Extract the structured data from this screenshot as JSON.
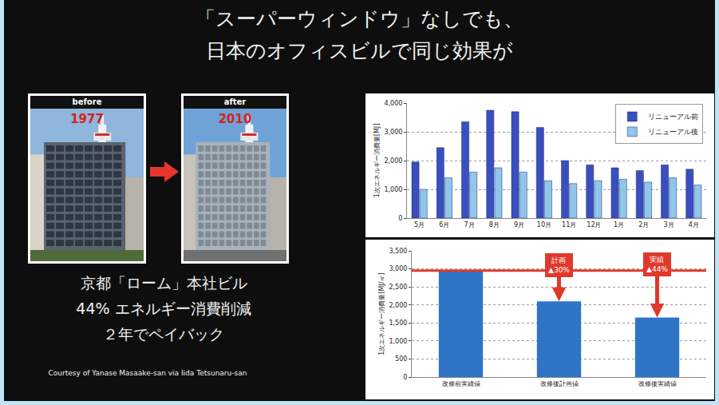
{
  "title": [
    "「スーパーウィンドウ」なしでも、",
    "日本のオフィスビルで同じ効果が"
  ],
  "photos": [
    {
      "header": "before",
      "year": "1977"
    },
    {
      "header": "after",
      "year": "2010"
    }
  ],
  "caption": [
    "京都「ローム」本社ビル",
    "44% エネルギー消費削減",
    "２年でペイバック"
  ],
  "credit": "Courtesy of Yanase Masaake-san via Iida Tetsunaru-san",
  "chart_data": [
    {
      "type": "bar",
      "y_label": "1次エネルギー消費量[MJ]",
      "categories": [
        "5月",
        "6月",
        "7月",
        "8月",
        "9月",
        "10月",
        "11月",
        "12月",
        "1月",
        "2月",
        "3月",
        "4月"
      ],
      "series": [
        {
          "name": "リニューアル前",
          "color": "#3a4fbf",
          "values": [
            1950,
            2450,
            3350,
            3750,
            3700,
            3150,
            2000,
            1850,
            1750,
            1650,
            1850,
            1700
          ]
        },
        {
          "name": "リニューアル後",
          "color": "#8fc6ea",
          "values": [
            1000,
            1400,
            1600,
            1750,
            1600,
            1300,
            1200,
            1300,
            1350,
            1250,
            1400,
            1150
          ]
        }
      ],
      "ylim": [
        0,
        4000
      ],
      "yticks": [
        0,
        {
          "value": 1000,
          "label": "1,000"
        },
        {
          "value": 2000,
          "label": "2,000"
        },
        {
          "value": 3000,
          "label": "3,000"
        },
        {
          "value": 4000,
          "label": "4,000"
        }
      ],
      "grid": true,
      "legend": "top right"
    },
    {
      "type": "bar",
      "y_label": "1次エネルギー消費量[MJ/㎡]",
      "categories": [
        "改修前実績値",
        "改修後計画値",
        "改修後実績値"
      ],
      "values": [
        2950,
        2100,
        1650
      ],
      "color": "#2e75c8",
      "ylim": [
        0,
        3500
      ],
      "yticks": [
        0,
        500,
        {
          "value": 1000,
          "label": "1,000"
        },
        {
          "value": 1500,
          "label": "1,500"
        },
        {
          "value": 2000,
          "label": "2,000"
        },
        {
          "value": 2500,
          "label": "2,500"
        },
        {
          "value": 3000,
          "label": "3,000"
        },
        {
          "value": 3500,
          "label": "3,500"
        }
      ],
      "grid": true,
      "annotations": [
        {
          "category": "改修後計画値",
          "lines": [
            "計画",
            "▲30%"
          ]
        },
        {
          "category": "改修後実績値",
          "lines": [
            "実績",
            "▲44%"
          ]
        }
      ]
    }
  ]
}
